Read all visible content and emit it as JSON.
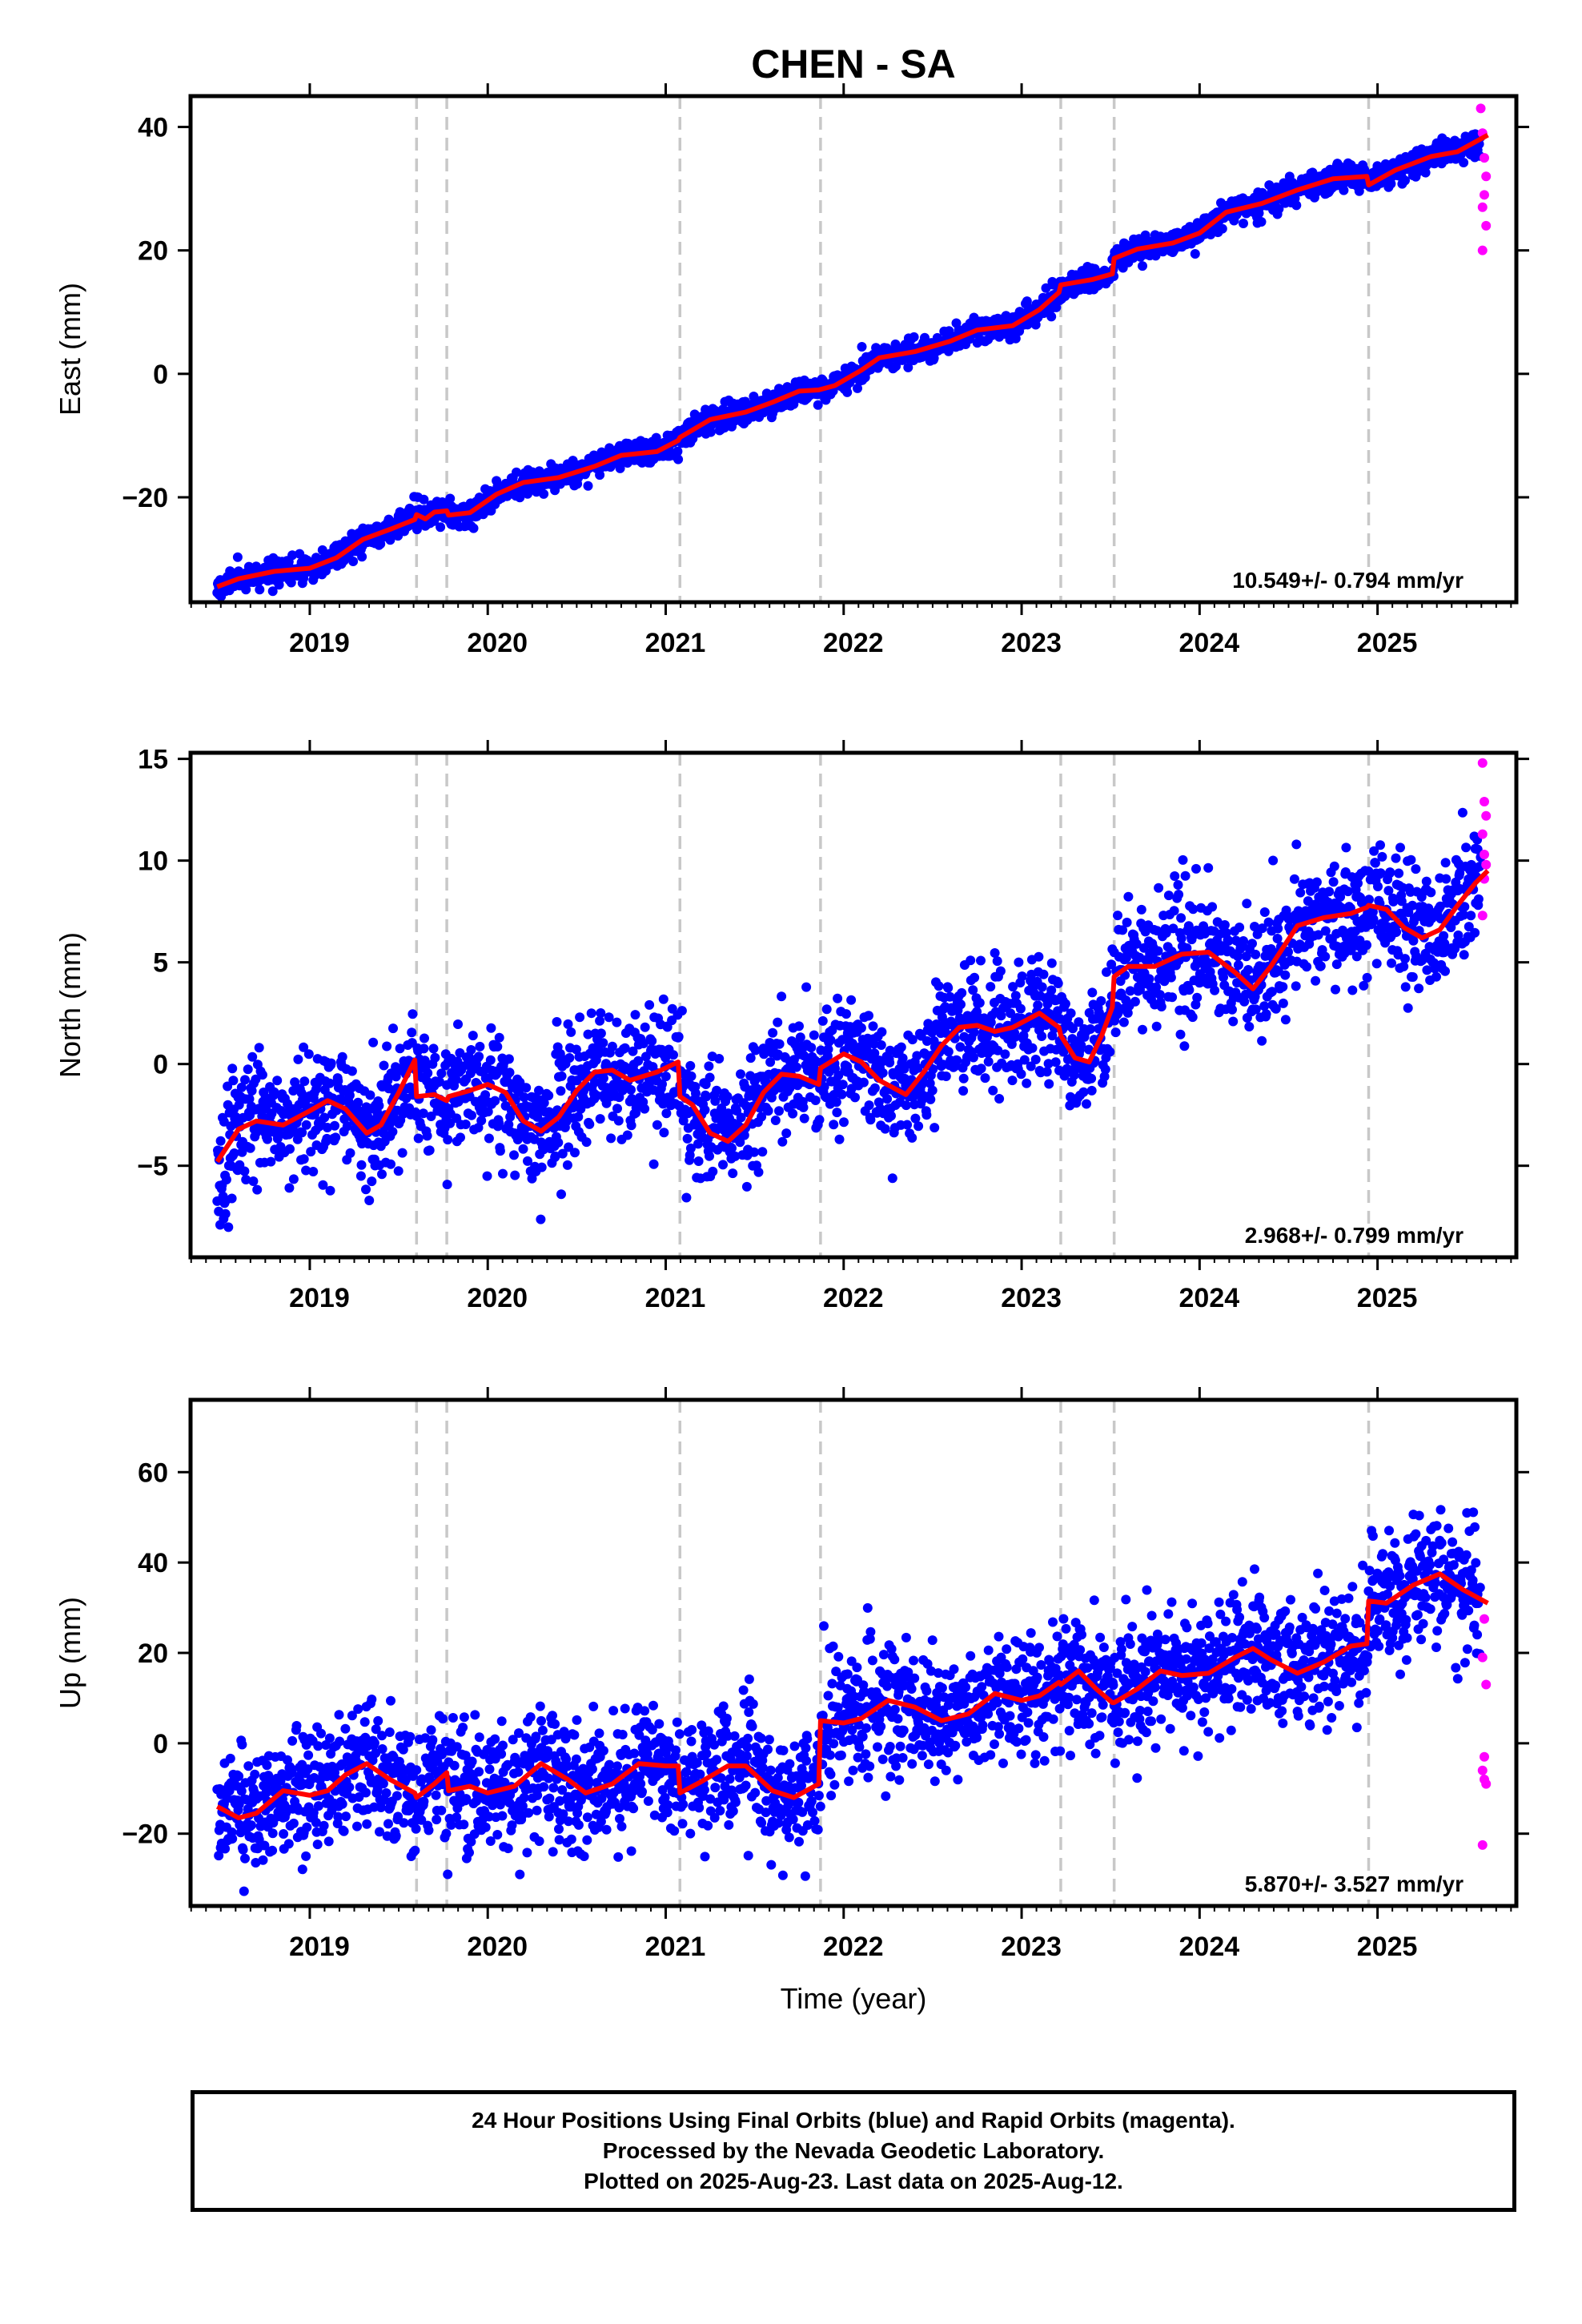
{
  "figure": {
    "title": "CHEN - SA",
    "xlabel": "Time (year)",
    "footer_lines": [
      "24 Hour Positions Using Final Orbits (blue) and Rapid Orbits (magenta).",
      "Processed by the Nevada Geodetic Laboratory.",
      "Plotted on 2025-Aug-23. Last data on 2025-Aug-12."
    ]
  },
  "colors": {
    "final_orbits": "#0000ff",
    "rapid_orbits": "#ff00ff",
    "model_fit": "#ff0000",
    "offset_lines": "#c8c8c8"
  },
  "chart_data": [
    {
      "type": "scatter",
      "panel": "east",
      "ylabel": "East (mm)",
      "rate_text": "10.549+/- 0.794 mm/yr",
      "rate_mm_yr": 10.549,
      "xlim": [
        2018.33,
        2025.78
      ],
      "ylim": [
        -37,
        45
      ],
      "yticks": [
        -20,
        0,
        20,
        40
      ],
      "xticks": [
        2019,
        2020,
        2021,
        2022,
        2023,
        2024,
        2025
      ],
      "xtick_labels": [
        "2019",
        "2020",
        "2021",
        "2022",
        "2023",
        "2024",
        "2025"
      ],
      "offset_epochs": [
        2019.6,
        2019.77,
        2021.08,
        2021.87,
        2023.22,
        2023.52,
        2024.95
      ],
      "model_fit": [
        [
          2018.48,
          -34.5
        ],
        [
          2018.6,
          -33.2
        ],
        [
          2018.8,
          -32.0
        ],
        [
          2019.0,
          -31.5
        ],
        [
          2019.15,
          -29.8
        ],
        [
          2019.3,
          -26.8
        ],
        [
          2019.45,
          -25.2
        ],
        [
          2019.59,
          -23.6
        ],
        [
          2019.6,
          -22.8
        ],
        [
          2019.65,
          -23.5
        ],
        [
          2019.7,
          -22.4
        ],
        [
          2019.77,
          -22.2
        ],
        [
          2019.78,
          -22.9
        ],
        [
          2019.9,
          -22.5
        ],
        [
          2020.05,
          -19.5
        ],
        [
          2020.2,
          -17.6
        ],
        [
          2020.4,
          -16.8
        ],
        [
          2020.6,
          -15.0
        ],
        [
          2020.75,
          -13.2
        ],
        [
          2020.95,
          -12.6
        ],
        [
          2021.07,
          -10.8
        ],
        [
          2021.08,
          -10.3
        ],
        [
          2021.25,
          -7.4
        ],
        [
          2021.45,
          -6.2
        ],
        [
          2021.6,
          -4.6
        ],
        [
          2021.75,
          -2.8
        ],
        [
          2021.86,
          -2.6
        ],
        [
          2021.95,
          -1.9
        ],
        [
          2022.1,
          0.6
        ],
        [
          2022.2,
          2.6
        ],
        [
          2022.4,
          3.6
        ],
        [
          2022.6,
          5.3
        ],
        [
          2022.75,
          7.1
        ],
        [
          2022.95,
          7.8
        ],
        [
          2023.1,
          10.4
        ],
        [
          2023.21,
          13.2
        ],
        [
          2023.22,
          14.4
        ],
        [
          2023.4,
          15.3
        ],
        [
          2023.51,
          16.2
        ],
        [
          2023.52,
          18.7
        ],
        [
          2023.65,
          20.2
        ],
        [
          2023.85,
          21.2
        ],
        [
          2024.0,
          22.8
        ],
        [
          2024.15,
          26.2
        ],
        [
          2024.35,
          27.6
        ],
        [
          2024.55,
          29.8
        ],
        [
          2024.75,
          31.6
        ],
        [
          2024.94,
          32.0
        ],
        [
          2024.95,
          30.6
        ],
        [
          2025.1,
          33.0
        ],
        [
          2025.3,
          35.2
        ],
        [
          2025.45,
          36.0
        ],
        [
          2025.62,
          38.7
        ]
      ],
      "rapid_points": [
        [
          2025.58,
          43
        ],
        [
          2025.59,
          39
        ],
        [
          2025.6,
          35
        ],
        [
          2025.61,
          32
        ],
        [
          2025.6,
          29
        ],
        [
          2025.59,
          27
        ],
        [
          2025.61,
          24
        ],
        [
          2025.59,
          20
        ]
      ],
      "noise_sd": 1.0,
      "noise_seed": 11
    },
    {
      "type": "scatter",
      "panel": "north",
      "ylabel": "North (mm)",
      "rate_text": "2.968+/- 0.799 mm/yr",
      "rate_mm_yr": 2.968,
      "xlim": [
        2018.33,
        2025.78
      ],
      "ylim": [
        -9.5,
        15.3
      ],
      "yticks": [
        -5,
        0,
        5,
        10,
        15
      ],
      "xticks": [
        2019,
        2020,
        2021,
        2022,
        2023,
        2024,
        2025
      ],
      "xtick_labels": [
        "2019",
        "2020",
        "2021",
        "2022",
        "2023",
        "2024",
        "2025"
      ],
      "offset_epochs": [
        2019.6,
        2019.77,
        2021.08,
        2021.87,
        2023.22,
        2023.52,
        2024.95
      ],
      "model_fit": [
        [
          2018.48,
          -4.8
        ],
        [
          2018.6,
          -3.2
        ],
        [
          2018.7,
          -2.8
        ],
        [
          2018.85,
          -3.0
        ],
        [
          2019.0,
          -2.3
        ],
        [
          2019.1,
          -1.8
        ],
        [
          2019.2,
          -2.2
        ],
        [
          2019.32,
          -3.4
        ],
        [
          2019.4,
          -3.0
        ],
        [
          2019.5,
          -1.4
        ],
        [
          2019.59,
          0.2
        ],
        [
          2019.6,
          -1.6
        ],
        [
          2019.7,
          -1.5
        ],
        [
          2019.77,
          -1.8
        ],
        [
          2019.78,
          -1.6
        ],
        [
          2019.9,
          -1.3
        ],
        [
          2020.0,
          -1.0
        ],
        [
          2020.1,
          -1.4
        ],
        [
          2020.2,
          -2.8
        ],
        [
          2020.3,
          -3.3
        ],
        [
          2020.4,
          -2.6
        ],
        [
          2020.5,
          -1.3
        ],
        [
          2020.6,
          -0.4
        ],
        [
          2020.7,
          -0.3
        ],
        [
          2020.8,
          -0.8
        ],
        [
          2020.95,
          -0.4
        ],
        [
          2021.07,
          0.1
        ],
        [
          2021.08,
          -1.6
        ],
        [
          2021.15,
          -2.0
        ],
        [
          2021.25,
          -3.4
        ],
        [
          2021.35,
          -3.8
        ],
        [
          2021.45,
          -3.0
        ],
        [
          2021.55,
          -1.4
        ],
        [
          2021.65,
          -0.5
        ],
        [
          2021.75,
          -0.6
        ],
        [
          2021.86,
          -1.0
        ],
        [
          2021.87,
          -0.2
        ],
        [
          2022.0,
          0.5
        ],
        [
          2022.1,
          0.1
        ],
        [
          2022.2,
          -0.8
        ],
        [
          2022.35,
          -1.5
        ],
        [
          2022.45,
          -0.4
        ],
        [
          2022.55,
          0.9
        ],
        [
          2022.65,
          1.8
        ],
        [
          2022.75,
          1.9
        ],
        [
          2022.85,
          1.6
        ],
        [
          2022.95,
          1.8
        ],
        [
          2023.1,
          2.5
        ],
        [
          2023.21,
          1.8
        ],
        [
          2023.22,
          1.4
        ],
        [
          2023.3,
          0.3
        ],
        [
          2023.38,
          0.1
        ],
        [
          2023.45,
          1.4
        ],
        [
          2023.51,
          2.8
        ],
        [
          2023.52,
          4.3
        ],
        [
          2023.6,
          4.8
        ],
        [
          2023.75,
          4.8
        ],
        [
          2023.9,
          5.4
        ],
        [
          2024.05,
          5.5
        ],
        [
          2024.2,
          4.5
        ],
        [
          2024.3,
          3.7
        ],
        [
          2024.4,
          4.8
        ],
        [
          2024.55,
          6.8
        ],
        [
          2024.7,
          7.2
        ],
        [
          2024.85,
          7.4
        ],
        [
          2024.94,
          7.7
        ],
        [
          2024.95,
          7.8
        ],
        [
          2025.05,
          7.6
        ],
        [
          2025.15,
          6.7
        ],
        [
          2025.25,
          6.2
        ],
        [
          2025.35,
          6.6
        ],
        [
          2025.45,
          7.8
        ],
        [
          2025.55,
          8.9
        ],
        [
          2025.62,
          9.5
        ]
      ],
      "rapid_points": [
        [
          2025.59,
          14.8
        ],
        [
          2025.6,
          12.9
        ],
        [
          2025.61,
          12.2
        ],
        [
          2025.59,
          11.3
        ],
        [
          2025.6,
          10.3
        ],
        [
          2025.61,
          9.8
        ],
        [
          2025.6,
          9.1
        ],
        [
          2025.59,
          7.3
        ]
      ],
      "noise_sd": 1.5,
      "noise_seed": 23
    },
    {
      "type": "scatter",
      "panel": "up",
      "ylabel": "Up (mm)",
      "rate_text": "5.870+/- 3.527 mm/yr",
      "rate_mm_yr": 5.87,
      "xlim": [
        2018.33,
        2025.78
      ],
      "ylim": [
        -36,
        76
      ],
      "yticks": [
        -20,
        0,
        20,
        40,
        60
      ],
      "xticks": [
        2019,
        2020,
        2021,
        2022,
        2023,
        2024,
        2025
      ],
      "xtick_labels": [
        "2019",
        "2020",
        "2021",
        "2022",
        "2023",
        "2024",
        "2025"
      ],
      "offset_epochs": [
        2019.6,
        2019.77,
        2021.08,
        2021.87,
        2023.22,
        2023.52,
        2024.95
      ],
      "model_fit": [
        [
          2018.48,
          -14
        ],
        [
          2018.6,
          -16.5
        ],
        [
          2018.7,
          -15.5
        ],
        [
          2018.85,
          -10.5
        ],
        [
          2019.0,
          -11.5
        ],
        [
          2019.1,
          -10.5
        ],
        [
          2019.2,
          -7
        ],
        [
          2019.32,
          -4.5
        ],
        [
          2019.45,
          -8
        ],
        [
          2019.59,
          -11
        ],
        [
          2019.6,
          -12
        ],
        [
          2019.7,
          -9
        ],
        [
          2019.77,
          -6.5
        ],
        [
          2019.78,
          -10.5
        ],
        [
          2019.9,
          -9.5
        ],
        [
          2020.0,
          -11
        ],
        [
          2020.15,
          -9.5
        ],
        [
          2020.3,
          -4.5
        ],
        [
          2020.45,
          -8
        ],
        [
          2020.55,
          -11
        ],
        [
          2020.7,
          -9
        ],
        [
          2020.85,
          -4.5
        ],
        [
          2021.0,
          -5
        ],
        [
          2021.07,
          -5
        ],
        [
          2021.08,
          -11
        ],
        [
          2021.2,
          -8.5
        ],
        [
          2021.35,
          -5
        ],
        [
          2021.45,
          -5
        ],
        [
          2021.6,
          -10.5
        ],
        [
          2021.72,
          -12
        ],
        [
          2021.86,
          -9
        ],
        [
          2021.87,
          5
        ],
        [
          2022.0,
          4.5
        ],
        [
          2022.1,
          5.5
        ],
        [
          2022.25,
          9.5
        ],
        [
          2022.4,
          8
        ],
        [
          2022.55,
          5
        ],
        [
          2022.7,
          6.5
        ],
        [
          2022.85,
          11
        ],
        [
          2023.0,
          9.5
        ],
        [
          2023.1,
          10.5
        ],
        [
          2023.21,
          13.5
        ],
        [
          2023.22,
          13
        ],
        [
          2023.32,
          16
        ],
        [
          2023.42,
          12
        ],
        [
          2023.51,
          9
        ],
        [
          2023.52,
          9
        ],
        [
          2023.65,
          12
        ],
        [
          2023.78,
          16
        ],
        [
          2023.9,
          15
        ],
        [
          2024.05,
          15.5
        ],
        [
          2024.2,
          19
        ],
        [
          2024.3,
          21
        ],
        [
          2024.4,
          18.5
        ],
        [
          2024.55,
          15.5
        ],
        [
          2024.7,
          18
        ],
        [
          2024.85,
          21.5
        ],
        [
          2024.94,
          22
        ],
        [
          2024.95,
          31.5
        ],
        [
          2025.05,
          31
        ],
        [
          2025.2,
          35
        ],
        [
          2025.35,
          37.5
        ],
        [
          2025.48,
          34
        ],
        [
          2025.62,
          31
        ]
      ],
      "rapid_points": [
        [
          2025.6,
          27.5
        ],
        [
          2025.59,
          19
        ],
        [
          2025.61,
          13
        ],
        [
          2025.6,
          -3
        ],
        [
          2025.59,
          -6
        ],
        [
          2025.6,
          -8
        ],
        [
          2025.61,
          -9
        ],
        [
          2025.59,
          -22.5
        ]
      ],
      "noise_sd": 7.0,
      "noise_seed": 37
    }
  ]
}
